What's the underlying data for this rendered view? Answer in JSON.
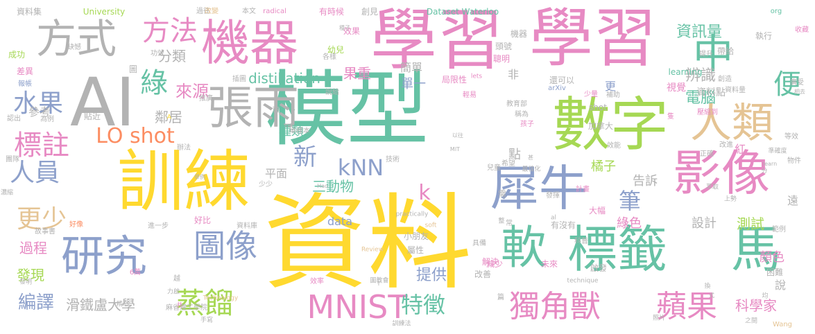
{
  "palette": {
    "pink": "#e78ac3",
    "green": "#66c2a5",
    "yellow": "#ffd92f",
    "gray": "#b3b3b3",
    "blue": "#8da0cb",
    "orange": "#fc8d62",
    "lime": "#a6d854",
    "tan": "#e5c494"
  },
  "words": [
    {
      "text": "資料",
      "color": "yellow",
      "size": 150
    },
    {
      "text": "模型",
      "color": "green",
      "size": 118
    },
    {
      "text": "學習",
      "color": "pink",
      "size": 96
    },
    {
      "text": "學習",
      "color": "pink",
      "size": 92
    },
    {
      "text": "訓練",
      "color": "yellow",
      "size": 96
    },
    {
      "text": "數字",
      "color": "lime",
      "size": 84
    },
    {
      "text": "機器",
      "color": "pink",
      "size": 70
    },
    {
      "text": "AI",
      "color": "gray",
      "size": 96
    },
    {
      "text": "方式",
      "color": "gray",
      "size": 58
    },
    {
      "text": "張雨",
      "color": "gray",
      "size": 66
    },
    {
      "text": "影像",
      "color": "pink",
      "size": 70
    },
    {
      "text": "人類",
      "color": "tan",
      "size": 60
    },
    {
      "text": "中",
      "color": "green",
      "size": 58
    },
    {
      "text": "犀牛",
      "color": "blue",
      "size": 70
    },
    {
      "text": "軟",
      "color": "green",
      "size": 66
    },
    {
      "text": "標籤",
      "color": "green",
      "size": 72
    },
    {
      "text": "馬",
      "color": "green",
      "size": 72
    },
    {
      "text": "研究",
      "color": "blue",
      "size": 62
    },
    {
      "text": "MNIST",
      "color": "pink",
      "size": 46
    },
    {
      "text": "獨角獸",
      "color": "pink",
      "size": 44
    },
    {
      "text": "蘋果",
      "color": "pink",
      "size": 44
    },
    {
      "text": "圖像",
      "color": "blue",
      "size": 46
    },
    {
      "text": "蒸餾",
      "color": "lime",
      "size": 42
    },
    {
      "text": "方法",
      "color": "pink",
      "size": 40
    },
    {
      "text": "綠",
      "color": "green",
      "size": 40
    },
    {
      "text": "標註",
      "color": "pink",
      "size": 40
    },
    {
      "text": "水果",
      "color": "blue",
      "size": 36
    },
    {
      "text": "人員",
      "color": "blue",
      "size": 36
    },
    {
      "text": "更少",
      "color": "tan",
      "size": 36
    },
    {
      "text": "LO shot",
      "color": "orange",
      "size": 30
    },
    {
      "text": "kNN",
      "color": "blue",
      "size": 32
    },
    {
      "text": "新",
      "color": "blue",
      "size": 34
    },
    {
      "text": "特徵",
      "color": "green",
      "size": 32
    },
    {
      "text": "筆",
      "color": "blue",
      "size": 32
    },
    {
      "text": "便",
      "color": "green",
      "size": 40
    },
    {
      "text": "資訊量",
      "color": "green",
      "size": 22
    },
    {
      "text": "辨識",
      "color": "gray",
      "size": 22
    },
    {
      "text": "電腦",
      "color": "green",
      "size": 22
    },
    {
      "text": "來源",
      "color": "pink",
      "size": 24
    },
    {
      "text": "分類",
      "color": "gray",
      "size": 20
    },
    {
      "text": "distillation",
      "color": "green",
      "size": 20
    },
    {
      "text": "果重",
      "color": "pink",
      "size": 20
    },
    {
      "text": "簡單",
      "color": "gray",
      "size": 16
    },
    {
      "text": "單一",
      "color": "blue",
      "size": 18
    },
    {
      "text": "種類",
      "color": "green",
      "size": 18
    },
    {
      "text": "鄰居",
      "color": "gray",
      "size": 20
    },
    {
      "text": "參考",
      "color": "gray",
      "size": 16
    },
    {
      "text": "平面",
      "color": "gray",
      "size": 16
    },
    {
      "text": "三動物",
      "color": "green",
      "size": 20
    },
    {
      "text": "告訴",
      "color": "gray",
      "size": 18
    },
    {
      "text": "橘子",
      "color": "lime",
      "size": 18
    },
    {
      "text": "過程",
      "color": "pink",
      "size": 20
    },
    {
      "text": "發現",
      "color": "lime",
      "size": 20
    },
    {
      "text": "編譯",
      "color": "blue",
      "size": 26
    },
    {
      "text": "滑鐵盧大學",
      "color": "gray",
      "size": 20
    },
    {
      "text": "提供",
      "color": "blue",
      "size": 22
    },
    {
      "text": "科學家",
      "color": "pink",
      "size": 20
    },
    {
      "text": "設計",
      "color": "gray",
      "size": 18
    },
    {
      "text": "測試",
      "color": "lime",
      "size": 20
    },
    {
      "text": "顏色",
      "color": "pink",
      "size": 18
    },
    {
      "text": "綠色",
      "color": "pink",
      "size": 18
    },
    {
      "text": "data",
      "color": "blue",
      "size": 16
    },
    {
      "text": "k",
      "color": "pink",
      "size": 30
    },
    {
      "text": "視覺",
      "color": "pink",
      "size": 14
    },
    {
      "text": "資料點",
      "color": "gray",
      "size": 14
    },
    {
      "text": "更",
      "color": "blue",
      "size": 16
    },
    {
      "text": "紅",
      "color": "pink",
      "size": 16
    },
    {
      "text": "說",
      "color": "gray",
      "size": 16
    },
    {
      "text": "遠",
      "color": "gray",
      "size": 16
    },
    {
      "text": "點",
      "color": "gray",
      "size": 18
    },
    {
      "text": "非",
      "color": "gray",
      "size": 16
    },
    {
      "text": "University",
      "color": "lime",
      "size": 12
    },
    {
      "text": "Dataset Waterloo",
      "color": "green",
      "size": 12
    },
    {
      "text": "learning",
      "color": "green",
      "size": 12
    },
    {
      "text": "資料集",
      "color": "gray",
      "size": 12
    },
    {
      "text": "有時候",
      "color": "pink",
      "size": 12
    },
    {
      "text": "radical",
      "color": "pink",
      "size": 10
    },
    {
      "text": "創見",
      "color": "gray",
      "size": 12
    },
    {
      "text": "過往",
      "color": "gray",
      "size": 10
    },
    {
      "text": "本文",
      "color": "gray",
      "size": 10
    },
    {
      "text": "改變",
      "color": "tan",
      "size": 10
    },
    {
      "text": "執行",
      "color": "gray",
      "size": 12
    },
    {
      "text": "org",
      "color": "green",
      "size": 10
    },
    {
      "text": "收藏",
      "color": "pink",
      "size": 10
    },
    {
      "text": "帶給",
      "color": "gray",
      "size": 12
    },
    {
      "text": "提升",
      "color": "gray",
      "size": 10
    },
    {
      "text": "機器",
      "color": "gray",
      "size": 12
    },
    {
      "text": "頭號",
      "color": "gray",
      "size": 12
    },
    {
      "text": "效果",
      "color": "pink",
      "size": 12
    },
    {
      "text": "幼兒",
      "color": "lime",
      "size": 12
    },
    {
      "text": "聰明",
      "color": "pink",
      "size": 12
    },
    {
      "text": "局限性",
      "color": "pink",
      "size": 12
    },
    {
      "text": "輕易",
      "color": "pink",
      "size": 10
    },
    {
      "text": "還可以",
      "color": "gray",
      "size": 12
    },
    {
      "text": "創造",
      "color": "gray",
      "size": 10
    },
    {
      "text": "資料量",
      "color": "gray",
      "size": 10
    },
    {
      "text": "廣受",
      "color": "gray",
      "size": 10
    },
    {
      "text": "成功",
      "color": "lime",
      "size": 12
    },
    {
      "text": "缺憾",
      "color": "gray",
      "size": 10
    },
    {
      "text": "功效",
      "color": "gray",
      "size": 10
    },
    {
      "text": "差異",
      "color": "pink",
      "size": 12
    },
    {
      "text": "報帳",
      "color": "blue",
      "size": 10
    },
    {
      "text": "推廣",
      "color": "gray",
      "size": 10
    },
    {
      "text": "插圖",
      "color": "gray",
      "size": 10
    },
    {
      "text": "說給",
      "color": "gray",
      "size": 10
    },
    {
      "text": "lets",
      "color": "pink",
      "size": 9
    },
    {
      "text": "arXiv",
      "color": "blue",
      "size": 10
    },
    {
      "text": "少量",
      "color": "pink",
      "size": 10
    },
    {
      "text": "補助",
      "color": "gray",
      "size": 10
    },
    {
      "text": "教育部",
      "color": "gray",
      "size": 10
    },
    {
      "text": "稱為",
      "color": "gray",
      "size": 10
    },
    {
      "text": "孩子",
      "color": "pink",
      "size": 10
    },
    {
      "text": "認出",
      "color": "gray",
      "size": 10
    },
    {
      "text": "為例",
      "color": "gray",
      "size": 10
    },
    {
      "text": "貼近",
      "color": "gray",
      "size": 12
    },
    {
      "text": "shot",
      "color": "gray",
      "size": 12
    },
    {
      "text": "加拿大",
      "color": "gray",
      "size": 12
    },
    {
      "text": "壓縮到",
      "color": "pink",
      "size": 10
    },
    {
      "text": "正確",
      "color": "gray",
      "size": 10
    },
    {
      "text": "效能",
      "color": "gray",
      "size": 10
    },
    {
      "text": "準確度",
      "color": "gray",
      "size": 9
    },
    {
      "text": "改進",
      "color": "gray",
      "size": 10
    },
    {
      "text": "等效",
      "color": "gray",
      "size": 10
    },
    {
      "text": "物件",
      "color": "gray",
      "size": 10
    },
    {
      "text": "團隊",
      "color": "gray",
      "size": 10
    },
    {
      "text": "辦法",
      "color": "gray",
      "size": 10
    },
    {
      "text": "單樣本",
      "color": "gray",
      "size": 10
    },
    {
      "text": "兒童",
      "color": "gray",
      "size": 10
    },
    {
      "text": "希望",
      "color": "gray",
      "size": 10
    },
    {
      "text": "最佳化",
      "color": "gray",
      "size": 9
    },
    {
      "text": "技術",
      "color": "gray",
      "size": 10
    },
    {
      "text": "計畫",
      "color": "pink",
      "size": 10
    },
    {
      "text": "發揮",
      "color": "gray",
      "size": 10
    },
    {
      "text": "大幅",
      "color": "pink",
      "size": 12
    },
    {
      "text": "萃取",
      "color": "gray",
      "size": 9
    },
    {
      "text": "上勢",
      "color": "gray",
      "size": 9
    },
    {
      "text": "有沒有",
      "color": "gray",
      "size": 12
    },
    {
      "text": "少少",
      "color": "gray",
      "size": 10
    },
    {
      "text": "好比",
      "color": "pink",
      "size": 12
    },
    {
      "text": "資料庫",
      "color": "gray",
      "size": 10
    },
    {
      "text": "進一步",
      "color": "gray",
      "size": 10
    },
    {
      "text": "好像",
      "color": "orange",
      "size": 10
    },
    {
      "text": "故事書",
      "color": "gray",
      "size": 10
    },
    {
      "text": "小朋友",
      "color": "gray",
      "size": 12
    },
    {
      "text": "屬性",
      "color": "gray",
      "size": 12
    },
    {
      "text": "具備",
      "color": "gray",
      "size": 10
    },
    {
      "text": "科普",
      "color": "gray",
      "size": 10
    },
    {
      "text": "未來",
      "color": "pink",
      "size": 12
    },
    {
      "text": "減少",
      "color": "pink",
      "size": 12
    },
    {
      "text": "解決",
      "color": "pink",
      "size": 12
    },
    {
      "text": "改善",
      "color": "gray",
      "size": 12
    },
    {
      "text": "啟發",
      "color": "gray",
      "size": 12
    },
    {
      "text": "困難",
      "color": "gray",
      "size": 12
    },
    {
      "text": "範例",
      "color": "gray",
      "size": 10
    },
    {
      "text": "6萬",
      "color": "pink",
      "size": 10
    },
    {
      "text": "效率",
      "color": "pink",
      "size": 10
    },
    {
      "text": "圖教會",
      "color": "gray",
      "size": 9
    },
    {
      "text": "technique",
      "color": "gray",
      "size": 9
    },
    {
      "text": "發明",
      "color": "gray",
      "size": 9
    },
    {
      "text": "精心",
      "color": "gray",
      "size": 9
    },
    {
      "text": "力啟",
      "color": "gray",
      "size": 9
    },
    {
      "text": "Technology",
      "color": "tan",
      "size": 9
    },
    {
      "text": "麻省理工學院",
      "color": "gray",
      "size": 10
    },
    {
      "text": "手寫",
      "color": "gray",
      "size": 9
    },
    {
      "text": "訓練法",
      "color": "gray",
      "size": 9
    },
    {
      "text": "照片",
      "color": "gray",
      "size": 9
    },
    {
      "text": "之間",
      "color": "gray",
      "size": 9
    },
    {
      "text": "Wang",
      "color": "tan",
      "size": 10
    },
    {
      "text": "Review",
      "color": "tan",
      "size": 9
    },
    {
      "text": "soft",
      "color": "tan",
      "size": 9
    },
    {
      "text": "practically",
      "color": "gray",
      "size": 9
    },
    {
      "text": "MIT",
      "color": "gray",
      "size": 8
    },
    {
      "text": "Hao",
      "color": "gray",
      "size": 8
    },
    {
      "text": "learn",
      "color": "gray",
      "size": 8
    },
    {
      "text": "al",
      "color": "gray",
      "size": 9
    },
    {
      "text": "相去",
      "color": "gray",
      "size": 8
    },
    {
      "text": "濃縮",
      "color": "gray",
      "size": 9
    },
    {
      "text": "舉例",
      "color": "gray",
      "size": 8
    },
    {
      "text": "以往",
      "color": "gray",
      "size": 8
    },
    {
      "text": "種子",
      "color": "gray",
      "size": 8
    },
    {
      "text": "各樣",
      "color": "gray",
      "size": 10
    },
    {
      "text": "圖",
      "color": "gray",
      "size": 12
    },
    {
      "text": "頭",
      "color": "gray",
      "size": 10
    },
    {
      "text": "分",
      "color": "gray",
      "size": 9
    },
    {
      "text": "A",
      "color": "yellow",
      "size": 9
    },
    {
      "text": "T",
      "color": "gray",
      "size": 8
    },
    {
      "text": "共",
      "color": "pink",
      "size": 9
    },
    {
      "text": "越",
      "color": "gray",
      "size": 10
    },
    {
      "text": "篇",
      "color": "gray",
      "size": 10
    },
    {
      "text": "常",
      "color": "gray",
      "size": 10
    },
    {
      "text": "需",
      "color": "gray",
      "size": 12
    },
    {
      "text": "換",
      "color": "gray",
      "size": 9
    },
    {
      "text": "隻",
      "color": "pink",
      "size": 10
    },
    {
      "text": "式",
      "color": "gray",
      "size": 8
    },
    {
      "text": "均",
      "color": "gray",
      "size": 9
    },
    {
      "text": "整",
      "color": "gray",
      "size": 9
    },
    {
      "text": "甚",
      "color": "gray",
      "size": 8
    },
    {
      "text": "隱私性",
      "color": "gray",
      "size": 10
    },
    {
      "text": "顆",
      "color": "gray",
      "size": 14
    }
  ]
}
